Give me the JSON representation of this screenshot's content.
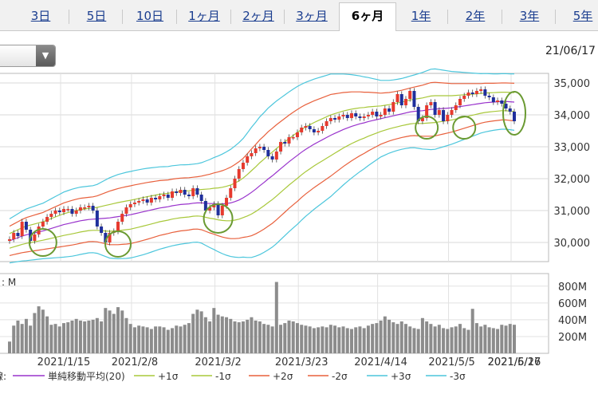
{
  "tabs": [
    {
      "label": "3日",
      "active": false
    },
    {
      "label": "5日",
      "active": false
    },
    {
      "label": "10日",
      "active": false
    },
    {
      "label": "1ヶ月",
      "active": false
    },
    {
      "label": "2ヶ月",
      "active": false
    },
    {
      "label": "3ヶ月",
      "active": false
    },
    {
      "label": "6ヶ月",
      "active": true
    },
    {
      "label": "1年",
      "active": false
    },
    {
      "label": "2年",
      "active": false
    },
    {
      "label": "3年",
      "active": false
    },
    {
      "label": "5年",
      "active": false
    }
  ],
  "dropdown": {
    "arrow": "▼"
  },
  "date_label": "21/06/17",
  "colors": {
    "up": "#e63a2e",
    "down": "#1f2f9c",
    "sma": "#9933cc",
    "s1": "#a8c83a",
    "s2": "#e8603c",
    "s3": "#4cc6dc",
    "volume": "#8c8c8c",
    "circle": "#6a9a32"
  },
  "chart_data": [
    {
      "type": "candlestick",
      "yticks": [
        30000,
        31000,
        32000,
        33000,
        34000,
        35000
      ],
      "ylim": [
        29400,
        35300
      ],
      "ytick_labels": [
        "30,000",
        "31,000",
        "32,000",
        "33,000",
        "34,000",
        "35,000"
      ],
      "close": [
        30100,
        30300,
        30200,
        30650,
        30400,
        30050,
        30250,
        30500,
        30650,
        30800,
        30900,
        31000,
        30950,
        31050,
        31050,
        30900,
        31000,
        31100,
        31100,
        31150,
        31000,
        30500,
        30300,
        30000,
        30300,
        30350,
        30650,
        30900,
        31100,
        31200,
        31250,
        31300,
        31350,
        31250,
        31400,
        31350,
        31450,
        31500,
        31400,
        31600,
        31550,
        31650,
        31500,
        31450,
        31700,
        31500,
        31300,
        31000,
        31100,
        31200,
        30850,
        31150,
        31400,
        31700,
        32000,
        32300,
        32500,
        32700,
        32800,
        32950,
        33000,
        32900,
        32700,
        32600,
        32850,
        33150,
        33100,
        33300,
        33300,
        33450,
        33600,
        33650,
        33550,
        33450,
        33500,
        33650,
        33800,
        33900,
        33850,
        33950,
        34000,
        33900,
        34050,
        33950,
        33900,
        33950,
        34000,
        34100,
        33950,
        34000,
        34200,
        34100,
        34400,
        34650,
        34300,
        34500,
        34750,
        34250,
        33800,
        33900,
        34300,
        34400,
        34000,
        34150,
        33800,
        34000,
        34150,
        34300,
        34500,
        34600,
        34700,
        34650,
        34750,
        34800,
        34600,
        34550,
        34400,
        34450,
        34350,
        34200,
        34100,
        33800
      ],
      "candles_note": "upward and downward daily candles",
      "sma20": [
        30050,
        30100,
        30150,
        30200,
        30240,
        30270,
        30300,
        30330,
        30360,
        30400,
        30440,
        30480,
        30520,
        30560,
        30590,
        30620,
        30650,
        30680,
        30700,
        30720,
        30730,
        30740,
        30750,
        30760,
        30770,
        30790,
        30810,
        30830,
        30850,
        30870,
        30900,
        30930,
        30960,
        30990,
        31020,
        31050,
        31080,
        31100,
        31120,
        31150,
        31170,
        31190,
        31200,
        31210,
        31230,
        31240,
        31240,
        31230,
        31220,
        31220,
        31210,
        31210,
        31220,
        31240,
        31280,
        31330,
        31400,
        31480,
        31570,
        31670,
        31780,
        31880,
        31990,
        32090,
        32200,
        32310,
        32420,
        32530,
        32630,
        32730,
        32830,
        32920,
        33000,
        33080,
        33150,
        33220,
        33290,
        33360,
        33420,
        33480,
        33540,
        33590,
        33640,
        33680,
        33720,
        33750,
        33790,
        33820,
        33850,
        33880,
        33910,
        33940,
        33970,
        34000,
        34030,
        34060,
        34090,
        34110,
        34120,
        34130,
        34150,
        34170,
        34180,
        34190,
        34200,
        34210,
        34220,
        34240,
        34260,
        34280,
        34300,
        34320,
        34340,
        34360,
        34380,
        34390,
        34400,
        34410,
        34420,
        34420,
        34410,
        34400
      ],
      "series": [
        {
          "name": "単純移動平均(20)",
          "key": "sma"
        },
        {
          "name": "+1σ",
          "key": "s1"
        },
        {
          "name": "-1σ",
          "key": "s1"
        },
        {
          "name": "+2σ",
          "key": "s2"
        },
        {
          "name": "-2σ",
          "key": "s2"
        },
        {
          "name": "+3σ",
          "key": "s3"
        },
        {
          "name": "-3σ",
          "key": "s3"
        }
      ],
      "sigma": [
        230,
        240,
        250,
        260,
        270,
        275,
        280,
        285,
        290,
        300,
        310,
        320,
        330,
        340,
        345,
        350,
        352,
        352,
        350,
        348,
        350,
        360,
        380,
        400,
        420,
        430,
        440,
        445,
        450,
        452,
        452,
        450,
        448,
        445,
        440,
        435,
        430,
        425,
        420,
        418,
        416,
        414,
        412,
        410,
        408,
        410,
        420,
        440,
        460,
        480,
        500,
        520,
        540,
        560,
        580,
        600,
        620,
        650,
        680,
        700,
        720,
        730,
        740,
        745,
        745,
        740,
        735,
        730,
        725,
        720,
        710,
        700,
        690,
        680,
        670,
        660,
        650,
        640,
        620,
        600,
        580,
        560,
        540,
        520,
        500,
        480,
        460,
        440,
        420,
        400,
        390,
        380,
        375,
        372,
        370,
        372,
        375,
        380,
        390,
        400,
        410,
        420,
        420,
        410,
        400,
        390,
        380,
        370,
        360,
        350,
        340,
        330,
        320,
        310,
        305,
        300,
        295,
        292,
        290,
        290,
        292,
        295
      ]
    },
    {
      "type": "bar",
      "yticks": [
        200,
        400,
        600,
        800
      ],
      "ytick_labels": [
        "200M",
        "400M",
        "600M",
        "800M"
      ],
      "ylim": [
        0,
        950
      ],
      "label_partial": ": M",
      "volume": [
        140,
        330,
        390,
        350,
        410,
        330,
        480,
        560,
        520,
        440,
        340,
        350,
        320,
        360,
        370,
        390,
        410,
        390,
        380,
        390,
        400,
        420,
        380,
        540,
        510,
        470,
        550,
        510,
        420,
        350,
        310,
        330,
        320,
        310,
        290,
        320,
        320,
        310,
        280,
        300,
        330,
        320,
        340,
        360,
        470,
        520,
        500,
        430,
        380,
        540,
        460,
        440,
        430,
        410,
        380,
        370,
        380,
        400,
        430,
        390,
        380,
        350,
        340,
        320,
        850,
        340,
        360,
        390,
        380,
        360,
        340,
        330,
        320,
        300,
        310,
        320,
        310,
        340,
        330,
        310,
        320,
        300,
        290,
        310,
        320,
        300,
        330,
        350,
        360,
        390,
        440,
        400,
        370,
        350,
        380,
        350,
        320,
        300,
        290,
        420,
        380,
        350,
        320,
        340,
        300,
        290,
        310,
        320,
        350,
        300,
        280,
        530,
        360,
        320,
        340,
        310,
        300,
        290,
        340,
        330,
        350,
        340
      ],
      "xtick_labels": [
        "2021/1/15",
        "2021/2/8",
        "2021/3/2",
        "2021/3/23",
        "2021/4/14",
        "2021/5/5",
        "2021/5/26",
        "2021/6/17"
      ],
      "xtick_index": [
        13,
        30,
        50,
        70,
        89,
        106,
        124,
        140
      ]
    }
  ],
  "legend": {
    "prefix": "線:",
    "items": [
      {
        "label": "単純移動平均(20)",
        "color_key": "sma"
      },
      {
        "label": "+1σ",
        "color_key": "s1"
      },
      {
        "label": "-1σ",
        "color_key": "s1"
      },
      {
        "label": "+2σ",
        "color_key": "s2"
      },
      {
        "label": "-2σ",
        "color_key": "s2"
      },
      {
        "label": "+3σ",
        "color_key": "s3"
      },
      {
        "label": "-3σ",
        "color_key": "s3"
      }
    ]
  }
}
